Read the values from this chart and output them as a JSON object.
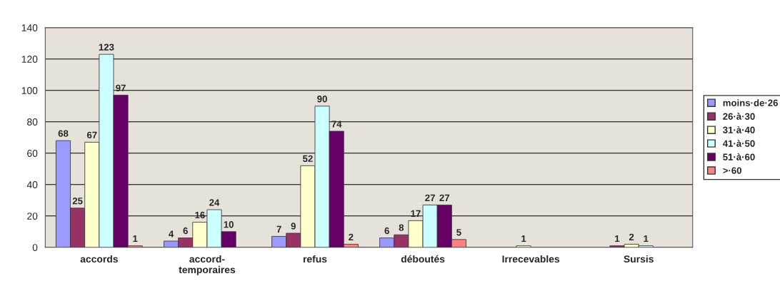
{
  "chart_data": {
    "type": "bar",
    "categories": [
      "accords",
      "accord-\ntemporaires",
      "refus",
      "déboutés",
      "Irrecevables",
      "Sursis"
    ],
    "series": [
      {
        "name": "moins·de·26",
        "color": "#9999ff",
        "values": [
          68,
          4,
          7,
          6,
          null,
          null
        ]
      },
      {
        "name": "26·à·30",
        "color": "#993366",
        "values": [
          25,
          6,
          9,
          8,
          null,
          1
        ]
      },
      {
        "name": "31·à·40",
        "color": "#ffffcc",
        "values": [
          67,
          16,
          52,
          17,
          1,
          2
        ]
      },
      {
        "name": "41·à·50",
        "color": "#ccffff",
        "values": [
          123,
          24,
          90,
          27,
          null,
          1
        ]
      },
      {
        "name": "51·à·60",
        "color": "#660066",
        "values": [
          97,
          10,
          74,
          27,
          null,
          null
        ]
      },
      {
        "name": ">·60",
        "color": "#ff8080",
        "values": [
          1,
          null,
          2,
          5,
          null,
          null
        ]
      }
    ],
    "ylim": [
      0,
      140
    ],
    "yticks": [
      0,
      20,
      40,
      60,
      80,
      100,
      120,
      140
    ],
    "grid": "y",
    "legend": "right",
    "data_labels": true
  }
}
